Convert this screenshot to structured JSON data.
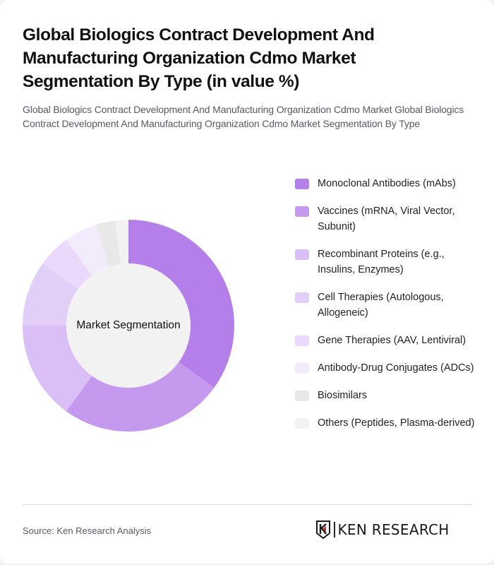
{
  "header": {
    "title": "Global Biologics Contract Development And Manufacturing Organization Cdmo Market Segmentation By Type (in value %)",
    "subtitle": "Global Biologics Contract Development And Manufacturing Organization Cdmo Market Global Biologics Contract Development And Manufacturing Organization Cdmo Market Segmentation By Type"
  },
  "chart": {
    "center_label": "Market Segmentation"
  },
  "legend": {
    "items": [
      {
        "label": "Monoclonal Antibodies (mAbs)",
        "color": "#b47fe9"
      },
      {
        "label": "Vaccines (mRNA, Viral Vector, Subunit)",
        "color": "#c59aee"
      },
      {
        "label": "Recombinant Proteins (e.g., Insulins, Enzymes)",
        "color": "#d9bff5"
      },
      {
        "label": "Cell Therapies (Autologous, Allogeneic)",
        "color": "#e2cff7"
      },
      {
        "label": "Gene Therapies (AAV, Lentiviral)",
        "color": "#ead9fa"
      },
      {
        "label": "Antibody-Drug Conjugates (ADCs)",
        "color": "#f2ebfc"
      },
      {
        "label": "Biosimilars",
        "color": "#e8e8e8"
      },
      {
        "label": "Others (Peptides, Plasma-derived)",
        "color": "#f2f2f2"
      }
    ]
  },
  "footer": {
    "source": "Source: Ken Research Analysis",
    "logo_text": "KEN RESEARCH"
  },
  "chart_data": {
    "type": "pie",
    "variant": "donut",
    "title": "Global Biologics Contract Development And Manufacturing Organization Cdmo Market Segmentation By Type (in value %)",
    "center_label": "Market Segmentation",
    "categories": [
      "Monoclonal Antibodies (mAbs)",
      "Vaccines (mRNA, Viral Vector, Subunit)",
      "Recombinant Proteins (e.g., Insulins, Enzymes)",
      "Cell Therapies (Autologous, Allogeneic)",
      "Gene Therapies (AAV, Lentiviral)",
      "Antibody-Drug Conjugates (ADCs)",
      "Biosimilars",
      "Others (Peptides, Plasma-derived)"
    ],
    "values": [
      35,
      25,
      15,
      10,
      5,
      5,
      3,
      2
    ],
    "colors": [
      "#b47fe9",
      "#c59aee",
      "#d9bff5",
      "#e2cff7",
      "#ead9fa",
      "#f2ebfc",
      "#e8e8e8",
      "#f2f2f2"
    ],
    "unit": "%",
    "legend_position": "right",
    "start_angle": "top, clockwise"
  }
}
